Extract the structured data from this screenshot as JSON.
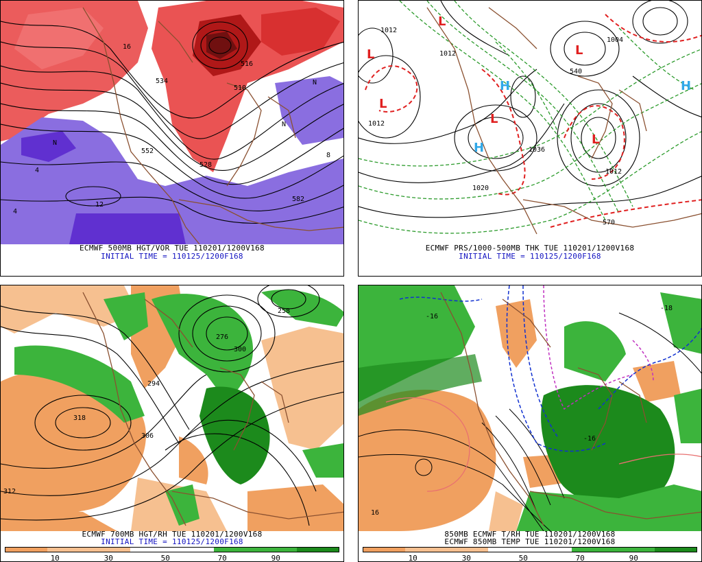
{
  "panels": [
    {
      "id": "p1",
      "caption1": "ECMWF 500MB HGT/VOR TUE 110201/1200V168",
      "caption2": "INITIAL TIME = 110125/1200F168",
      "labels": [
        "510",
        "582",
        "534",
        "552",
        "528",
        "516",
        "N",
        "N",
        "N",
        "4",
        "4",
        "8",
        "12",
        "16"
      ]
    },
    {
      "id": "p2",
      "caption1": "ECMWF PRS/1000-500MB THK TUE 110201/1200V168",
      "caption2": "INITIAL TIME = 110125/1200F168",
      "labels": [
        "1012",
        "1012",
        "1012",
        "1004",
        "1020",
        "1036",
        "1012",
        "570",
        "540"
      ],
      "highs": [
        "H",
        "H",
        "H"
      ],
      "lows": [
        "L",
        "L",
        "L",
        "L",
        "L",
        "L"
      ]
    },
    {
      "id": "p3",
      "caption1": "ECMWF 700MB HGT/RH TUE 110201/1200V168",
      "caption2": "INITIAL TIME = 110125/1200F168",
      "labels": [
        "318",
        "312",
        "306",
        "294",
        "258",
        "276",
        "300"
      ],
      "legend_ticks": [
        "10",
        "30",
        "50",
        "70",
        "90"
      ]
    },
    {
      "id": "p4",
      "caption1": "850MB ECMWF T/RH TUE 110201/1200V168",
      "caption2": "ECMWF 850MB TEMP TUE 110201/1200V168",
      "labels": [
        "-16",
        "-16",
        "-18",
        "16"
      ],
      "legend_ticks": [
        "10",
        "30",
        "50",
        "70",
        "90"
      ]
    }
  ],
  "colors": {
    "vort_pos": "#e84040",
    "vort_pos_dark": "#b01818",
    "vort_neg": "#8a6ee0",
    "vort_neg_dark": "#6030d0",
    "dry": "#f0a060",
    "dry_light": "#f6c090",
    "moist": "#3cb43c",
    "moist_dark": "#1c8a1c",
    "coast": "#8a5030",
    "red_dash": "#e02020",
    "green_dash": "#2a9a2a",
    "caption_blue": "#1010c0"
  }
}
